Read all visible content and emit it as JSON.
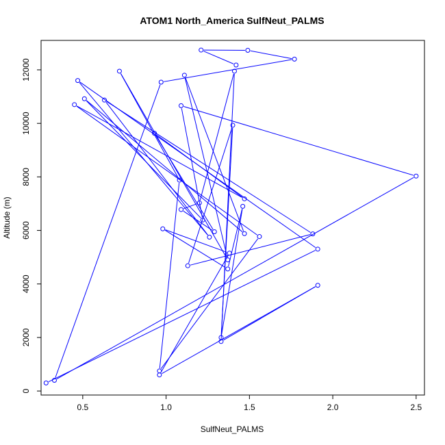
{
  "chart_data": {
    "type": "line",
    "title": "ATOM1 North_America SulfNeut_PALMS",
    "xlabel": "SulfNeut_PALMS",
    "ylabel": "Altitude (m)",
    "xlim": [
      0.25,
      2.55
    ],
    "ylim": [
      -150,
      13100
    ],
    "x_ticks": [
      0.5,
      1.0,
      1.5,
      2.0,
      2.5
    ],
    "x_tick_labels": [
      "0.5",
      "1.0",
      "1.5",
      "2.0",
      "2.5"
    ],
    "y_ticks": [
      0,
      2000,
      4000,
      6000,
      8000,
      10000,
      12000
    ],
    "y_tick_labels": [
      "0",
      "2000",
      "4000",
      "6000",
      "8000",
      "10000",
      "12000"
    ],
    "grid": false,
    "series_color": "#0000ff",
    "points": [
      {
        "x": 0.28,
        "y": 300
      },
      {
        "x": 1.91,
        "y": 5300
      },
      {
        "x": 0.47,
        "y": 11600
      },
      {
        "x": 1.26,
        "y": 5750
      },
      {
        "x": 0.63,
        "y": 10870
      },
      {
        "x": 1.88,
        "y": 5870
      },
      {
        "x": 1.13,
        "y": 4680
      },
      {
        "x": 1.4,
        "y": 9930
      },
      {
        "x": 1.33,
        "y": 2000
      },
      {
        "x": 1.46,
        "y": 6900
      },
      {
        "x": 1.37,
        "y": 4560
      },
      {
        "x": 0.98,
        "y": 6060
      },
      {
        "x": 1.38,
        "y": 5150
      },
      {
        "x": 0.96,
        "y": 600
      },
      {
        "x": 1.91,
        "y": 3950
      },
      {
        "x": 1.33,
        "y": 1850
      },
      {
        "x": 1.41,
        "y": 11950
      },
      {
        "x": 1.2,
        "y": 7030
      },
      {
        "x": 1.09,
        "y": 6780
      },
      {
        "x": 1.29,
        "y": 5950
      },
      {
        "x": 0.93,
        "y": 9630
      },
      {
        "x": 1.47,
        "y": 7180
      },
      {
        "x": 0.45,
        "y": 10700
      },
      {
        "x": 1.56,
        "y": 5770
      },
      {
        "x": 0.96,
        "y": 750
      },
      {
        "x": 1.08,
        "y": 7880
      },
      {
        "x": 0.72,
        "y": 11950
      },
      {
        "x": 1.37,
        "y": 4900
      },
      {
        "x": 1.11,
        "y": 11800
      },
      {
        "x": 1.47,
        "y": 5880
      },
      {
        "x": 0.51,
        "y": 10920
      },
      {
        "x": 1.22,
        "y": 6390
      },
      {
        "x": 1.09,
        "y": 10660
      },
      {
        "x": 2.5,
        "y": 8030
      },
      {
        "x": 0.33,
        "y": 400
      },
      {
        "x": 0.97,
        "y": 11540
      },
      {
        "x": 1.77,
        "y": 12400
      },
      {
        "x": 1.49,
        "y": 12730
      },
      {
        "x": 1.21,
        "y": 12740
      },
      {
        "x": 1.42,
        "y": 12180
      }
    ]
  }
}
